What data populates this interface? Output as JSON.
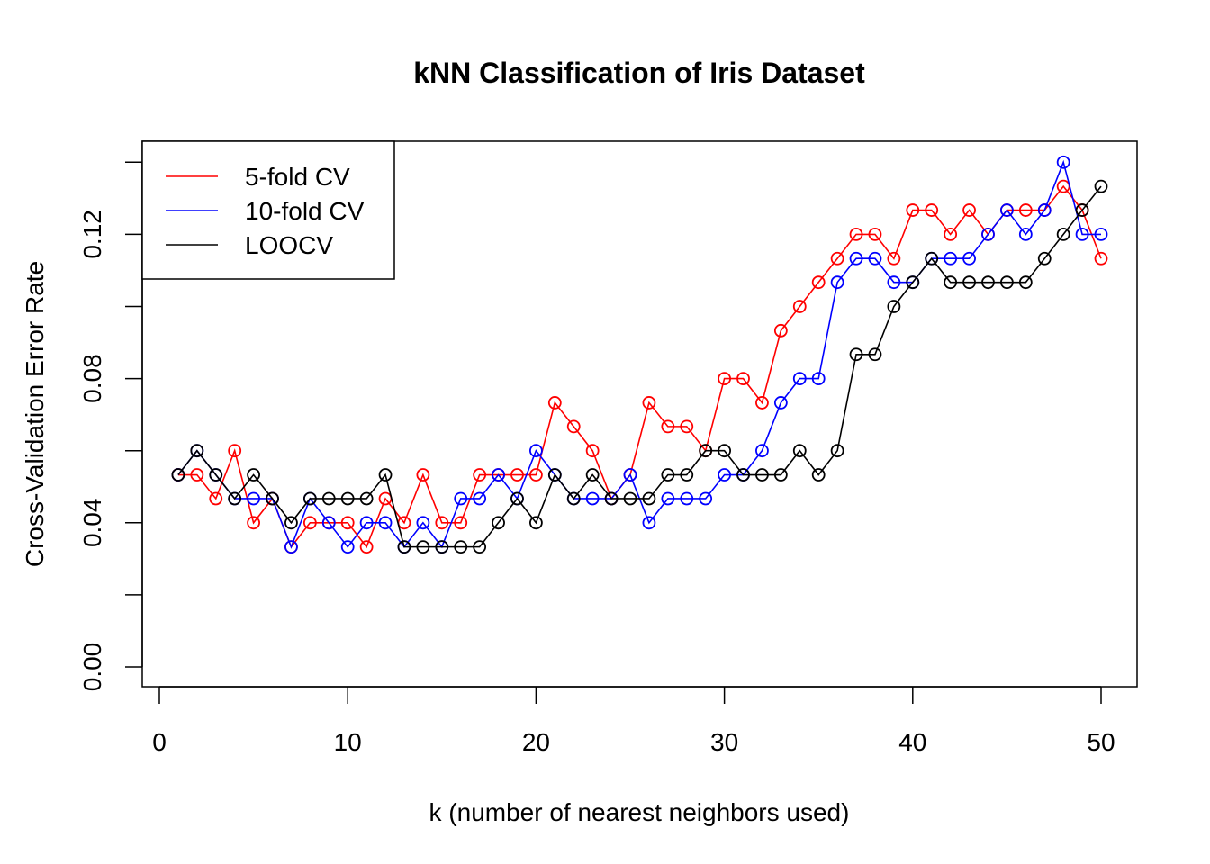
{
  "chart_data": {
    "type": "line",
    "title": "kNN Classification of Iris Dataset",
    "xlabel": "k (number of nearest neighbors used)",
    "ylabel": "Cross-Validation Error Rate",
    "xlim": [
      0,
      50
    ],
    "ylim": [
      0,
      0.14
    ],
    "x_ticks": [
      "0",
      "10",
      "20",
      "30",
      "40",
      "50"
    ],
    "y_ticks": [
      "0.00",
      "0.04",
      "0.08",
      "0.12"
    ],
    "grid": false,
    "legend_position": "top-left",
    "x": [
      1,
      2,
      3,
      4,
      5,
      6,
      7,
      8,
      9,
      10,
      11,
      12,
      13,
      14,
      15,
      16,
      17,
      18,
      19,
      20,
      21,
      22,
      23,
      24,
      25,
      26,
      27,
      28,
      29,
      30,
      31,
      32,
      33,
      34,
      35,
      36,
      37,
      38,
      39,
      40,
      41,
      42,
      43,
      44,
      45,
      46,
      47,
      48,
      49,
      50
    ],
    "series": [
      {
        "name": "5-fold CV",
        "color": "#ff0000",
        "values": [
          0.0533,
          0.0533,
          0.0467,
          0.06,
          0.04,
          0.0467,
          0.0333,
          0.04,
          0.04,
          0.04,
          0.0333,
          0.0467,
          0.04,
          0.0533,
          0.04,
          0.04,
          0.0533,
          0.0533,
          0.0533,
          0.0533,
          0.0733,
          0.0667,
          0.06,
          0.0467,
          0.0533,
          0.0733,
          0.0667,
          0.0667,
          0.06,
          0.08,
          0.08,
          0.0733,
          0.0933,
          0.1,
          0.1067,
          0.1133,
          0.12,
          0.12,
          0.1133,
          0.1267,
          0.1267,
          0.12,
          0.1267,
          0.12,
          0.1267,
          0.1267,
          0.1267,
          0.1333,
          0.1267,
          0.1133
        ]
      },
      {
        "name": "10-fold CV",
        "color": "#0000ff",
        "values": [
          0.0533,
          0.06,
          0.0533,
          0.0467,
          0.0467,
          0.0467,
          0.0333,
          0.0467,
          0.04,
          0.0333,
          0.04,
          0.04,
          0.0333,
          0.04,
          0.0333,
          0.0467,
          0.0467,
          0.0533,
          0.0467,
          0.06,
          0.0533,
          0.0467,
          0.0467,
          0.0467,
          0.0533,
          0.04,
          0.0467,
          0.0467,
          0.0467,
          0.0533,
          0.0533,
          0.06,
          0.0733,
          0.08,
          0.08,
          0.1067,
          0.1133,
          0.1133,
          0.1067,
          0.1067,
          0.1133,
          0.1133,
          0.1133,
          0.12,
          0.1267,
          0.12,
          0.1267,
          0.14,
          0.12,
          0.12
        ]
      },
      {
        "name": "LOOCV",
        "color": "#000000",
        "values": [
          0.0533,
          0.06,
          0.0533,
          0.0467,
          0.0533,
          0.0467,
          0.04,
          0.0467,
          0.0467,
          0.0467,
          0.0467,
          0.0533,
          0.0333,
          0.0333,
          0.0333,
          0.0333,
          0.0333,
          0.04,
          0.0467,
          0.04,
          0.0533,
          0.0467,
          0.0533,
          0.0467,
          0.0467,
          0.0467,
          0.0533,
          0.0533,
          0.06,
          0.06,
          0.0533,
          0.0533,
          0.0533,
          0.06,
          0.0533,
          0.06,
          0.0867,
          0.0867,
          0.1,
          0.1067,
          0.1133,
          0.1067,
          0.1067,
          0.1067,
          0.1067,
          0.1067,
          0.1133,
          0.12,
          0.1267,
          0.1333
        ]
      }
    ]
  }
}
